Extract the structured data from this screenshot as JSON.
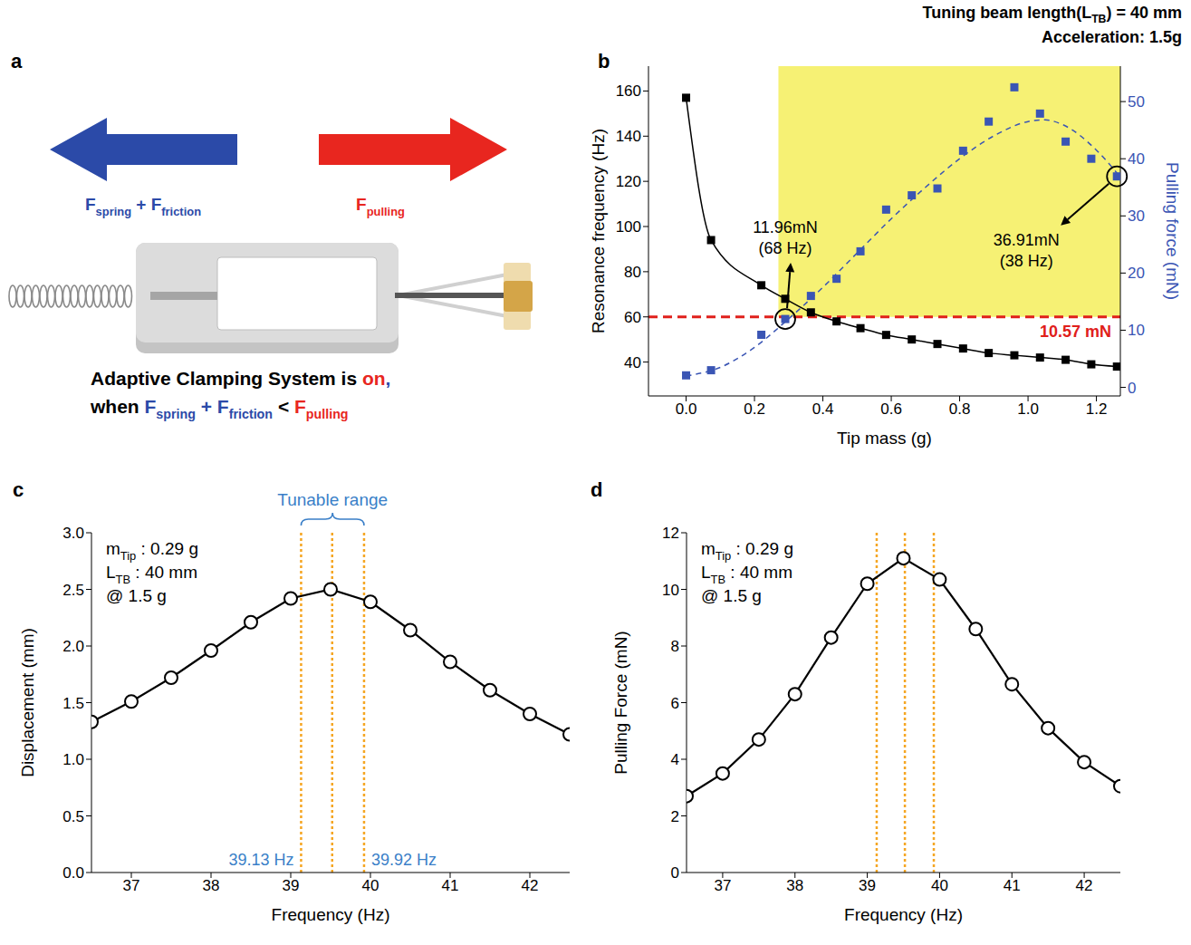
{
  "diagram": {
    "panel": "a",
    "left_force": [
      {
        "t": "F"
      },
      {
        "t": "spring",
        "sub": true
      },
      {
        "t": " + F"
      },
      {
        "t": "friction",
        "sub": true
      }
    ],
    "right_force": [
      {
        "t": "F"
      },
      {
        "t": "pulling",
        "sub": true
      }
    ],
    "left_color": "#2b4aa8",
    "right_color": "#e8261f",
    "caption": [
      [
        {
          "t": "Adaptive Clamping System is "
        },
        {
          "t": "on",
          "color": "#e8261f"
        },
        {
          "t": ",",
          "color": "#2b4aa8"
        }
      ],
      [
        {
          "t": "when "
        },
        {
          "t": "F",
          "color": "#2b4aa8"
        },
        {
          "t": "spring",
          "sub": true,
          "color": "#2b4aa8"
        },
        {
          "t": " + F",
          "color": "#2b4aa8"
        },
        {
          "t": "friction",
          "sub": true,
          "color": "#2b4aa8"
        },
        {
          "t": " < "
        },
        {
          "t": "F",
          "color": "#e8261f"
        },
        {
          "t": "pulling",
          "sub": true,
          "color": "#e8261f"
        }
      ]
    ]
  },
  "chart_data": [
    {
      "panel": "b",
      "type": "line",
      "subtitle": [
        [
          {
            "t": "Tuning beam length(L"
          },
          {
            "t": "TB",
            "sub": true
          },
          {
            "t": ") = 40 mm"
          }
        ],
        [
          {
            "t": "Acceleration: 1.5g"
          }
        ]
      ],
      "x_label": "Tip mass (g)",
      "y_label": "Resonance frequency (Hz)",
      "y2_label": "Pulling force (mN)",
      "xlim": [
        -0.11,
        1.27
      ],
      "xticks": [
        {
          "value": 0,
          "label": "0.0"
        },
        0.2,
        0.4,
        0.6,
        0.8,
        {
          "value": 1,
          "label": "1.0"
        },
        1.2
      ],
      "ylim": [
        25,
        171
      ],
      "yticks": [
        40,
        60,
        80,
        100,
        120,
        140,
        160
      ],
      "y2lim": [
        -1.5,
        56.2
      ],
      "y2ticks": [
        0,
        10,
        20,
        30,
        40,
        50
      ],
      "x": [
        0,
        0.073,
        0.22,
        0.29,
        0.365,
        0.44,
        0.51,
        0.585,
        0.66,
        0.735,
        0.81,
        0.885,
        0.96,
        1.035,
        1.11,
        1.185,
        1.26
      ],
      "series": [
        {
          "color": "#000000",
          "marker": "square",
          "line_style": "solid",
          "values": [
            157,
            94,
            74,
            68,
            62,
            58,
            55,
            52,
            50,
            48,
            46,
            44,
            43,
            42,
            41,
            39,
            38
          ]
        },
        {
          "axis": "y2",
          "color": "#3a55b4",
          "marker": "square",
          "line_style": "none",
          "values": [
            2.1,
            3.0,
            9.2,
            11.96,
            16.0,
            19.0,
            23.8,
            31.1,
            33.6,
            34.8,
            41.4,
            46.5,
            52.5,
            47.9,
            43.0,
            40.0,
            36.91
          ]
        },
        {
          "axis": "y2",
          "color": "#3a55b4",
          "marker": "none",
          "line_style": "dashed",
          "x": [
            0,
            0.1,
            0.2,
            0.3,
            0.4,
            0.5,
            0.6,
            0.7,
            0.8,
            0.9,
            1.0,
            1.05,
            1.1,
            1.2,
            1.26
          ],
          "values": [
            2.0,
            3.5,
            7.0,
            12.0,
            17.5,
            23.5,
            29.5,
            35.0,
            40.0,
            44.0,
            46.5,
            46.8,
            46.0,
            41.5,
            37.5
          ]
        }
      ],
      "threshold": {
        "value": 60,
        "label": "10.57 mN",
        "color": "#e0201b"
      },
      "highlight": {
        "x": [
          0.27,
          1.27
        ],
        "y": [
          60,
          171
        ],
        "color": "#f6f174"
      },
      "annotations": [
        {
          "x": 0.29,
          "y": 11.96,
          "axis": "y2",
          "lines": [
            "11.96mN",
            "(68 Hz)"
          ]
        },
        {
          "x": 1.26,
          "y": 36.91,
          "axis": "y2",
          "lines": [
            "36.91mN",
            "(38 Hz)"
          ]
        }
      ]
    },
    {
      "panel": "c",
      "type": "line",
      "x_label": "Frequency (Hz)",
      "y_label": "Displacement (mm)",
      "annotations": [
        [
          {
            "t": "m"
          },
          {
            "t": "Tip",
            "sub": true
          },
          {
            "t": " : 0.29 g"
          }
        ],
        [
          {
            "t": "L"
          },
          {
            "t": "TB",
            "sub": true
          },
          {
            "t": " : 40 mm"
          }
        ],
        [
          {
            "t": "@ 1.5 g"
          }
        ]
      ],
      "xlim": [
        36.5,
        42.5
      ],
      "xticks": [
        37,
        38,
        39,
        40,
        41,
        42
      ],
      "ylim": [
        0,
        3
      ],
      "yticks": [
        {
          "value": 0,
          "label": "0.0"
        },
        0.5,
        {
          "value": 1,
          "label": "1.0"
        },
        1.5,
        {
          "value": 2,
          "label": "2.0"
        },
        2.5,
        {
          "value": 3,
          "label": "3.0"
        }
      ],
      "x": [
        36.5,
        37,
        37.5,
        38,
        38.5,
        39,
        39.5,
        40,
        40.5,
        41,
        41.5,
        42,
        42.5
      ],
      "series": [
        {
          "color": "#000000",
          "marker": "circle",
          "line_style": "solid",
          "values": [
            1.33,
            1.51,
            1.72,
            1.96,
            2.21,
            2.42,
            2.5,
            2.39,
            2.14,
            1.86,
            1.61,
            1.4,
            1.22
          ]
        }
      ],
      "ref_lines": [
        {
          "value": 39.13,
          "label": "39.13 Hz",
          "color": "#f5a623"
        },
        {
          "value": 39.52,
          "color": "#f5a623"
        },
        {
          "value": 39.92,
          "label": "39.92 Hz",
          "color": "#f5a623"
        }
      ],
      "range_label": {
        "text": "Tunable range",
        "color": "#3a7fc8"
      }
    },
    {
      "panel": "d",
      "type": "line",
      "x_label": "Frequency (Hz)",
      "y_label": "Pulling Force (mN)",
      "annotations": [
        [
          {
            "t": "m"
          },
          {
            "t": "Tip",
            "sub": true
          },
          {
            "t": " : 0.29 g"
          }
        ],
        [
          {
            "t": "L"
          },
          {
            "t": "TB",
            "sub": true
          },
          {
            "t": " : 40 mm"
          }
        ],
        [
          {
            "t": "@ 1.5 g"
          }
        ]
      ],
      "xlim": [
        36.5,
        42.5
      ],
      "xticks": [
        37,
        38,
        39,
        40,
        41,
        42
      ],
      "ylim": [
        0,
        12
      ],
      "yticks": [
        0,
        2,
        4,
        6,
        8,
        10,
        12
      ],
      "x": [
        36.5,
        37,
        37.5,
        38,
        38.5,
        39,
        39.5,
        40,
        40.5,
        41,
        41.5,
        42,
        42.5
      ],
      "series": [
        {
          "color": "#000000",
          "marker": "circle",
          "line_style": "solid",
          "values": [
            2.7,
            3.5,
            4.7,
            6.3,
            8.3,
            10.2,
            11.1,
            10.35,
            8.6,
            6.65,
            5.1,
            3.9,
            3.05
          ]
        }
      ],
      "ref_lines": [
        {
          "value": 39.13,
          "color": "#f5a623"
        },
        {
          "value": 39.52,
          "color": "#f5a623"
        },
        {
          "value": 39.92,
          "color": "#f5a623"
        }
      ]
    }
  ]
}
